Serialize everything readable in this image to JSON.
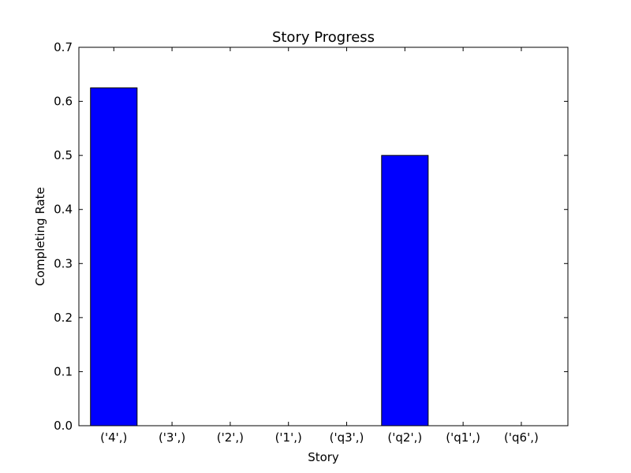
{
  "chart_data": {
    "type": "bar",
    "title": "Story Progress",
    "xlabel": "Story",
    "ylabel": "Completing Rate",
    "categories": [
      "('4',)",
      "('3',)",
      "('2',)",
      "('1',)",
      "('q3',)",
      "('q2',)",
      "('q1',)",
      "('q6',)"
    ],
    "values": [
      0.625,
      0,
      0,
      0,
      0,
      0.5,
      0,
      0
    ],
    "ylim": [
      0,
      0.7
    ],
    "yticks": [
      "0.0",
      "0.1",
      "0.2",
      "0.3",
      "0.4",
      "0.5",
      "0.6",
      "0.7"
    ],
    "grid": false,
    "colors": {
      "bar": "#0000ff",
      "edge": "#000000"
    }
  }
}
